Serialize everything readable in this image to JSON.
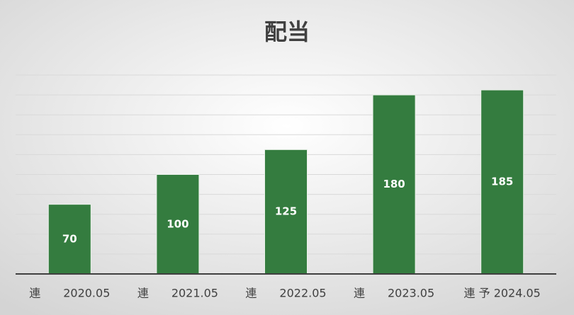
{
  "chart_data": {
    "type": "bar",
    "title": "配当",
    "categories": [
      "連　　2020.05",
      "連　　2021.05",
      "連　　2022.05",
      "連　　2023.05",
      "連 予 2024.05"
    ],
    "values": [
      70,
      100,
      125,
      180,
      185
    ],
    "color": "#347c3f",
    "ylim": [
      0,
      200
    ],
    "yticks": [
      0,
      20,
      40,
      60,
      80,
      100,
      120,
      140,
      160,
      180,
      200
    ],
    "grid": true
  }
}
